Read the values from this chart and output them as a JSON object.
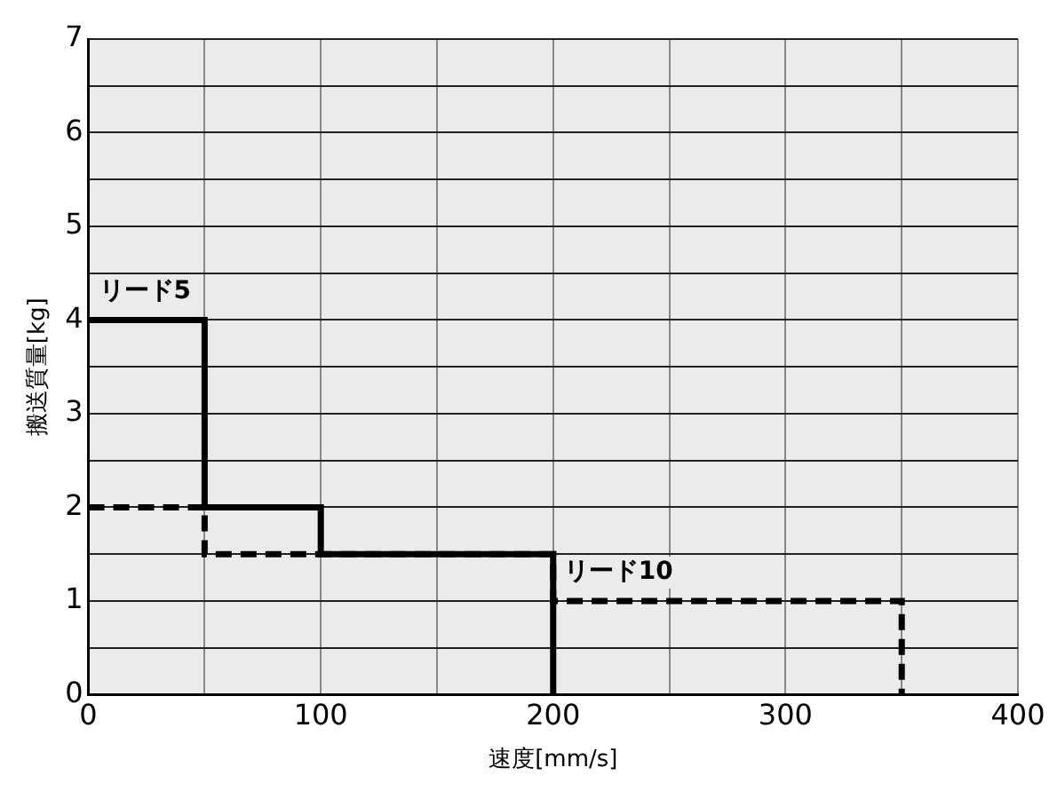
{
  "chart_data": {
    "type": "step",
    "xlabel": "速度[mm/s]",
    "ylabel": "搬送質量[kg]",
    "xlim": [
      0,
      400
    ],
    "ylim": [
      0,
      7
    ],
    "xticks": [
      0,
      {
        "value": 50,
        "label": null
      },
      100,
      {
        "value": 150,
        "label": null
      },
      200,
      {
        "value": 250,
        "label": null
      },
      300,
      {
        "value": 350,
        "label": null
      },
      400
    ],
    "yticks": [
      0,
      {
        "value": 0.5,
        "label": null
      },
      1,
      {
        "value": 1.5,
        "label": null
      },
      2,
      {
        "value": 2.5,
        "label": null
      },
      3,
      {
        "value": 3.5,
        "label": null
      },
      4,
      {
        "value": 4.5,
        "label": null
      },
      5,
      {
        "value": 5.5,
        "label": null
      },
      6,
      {
        "value": 6.5,
        "label": null
      },
      7
    ],
    "grid": true,
    "legend": false,
    "series": [
      {
        "name": "リード5",
        "color": "#000000",
        "line_style": "solid",
        "x": [
          0,
          50,
          100,
          200
        ],
        "values": [
          4,
          2,
          1.5,
          0
        ]
      },
      {
        "name": "リード10",
        "color": "#000000",
        "line_style": "dashed",
        "x": [
          0,
          50,
          200,
          350
        ],
        "values": [
          2,
          1.5,
          1,
          0
        ]
      }
    ]
  }
}
